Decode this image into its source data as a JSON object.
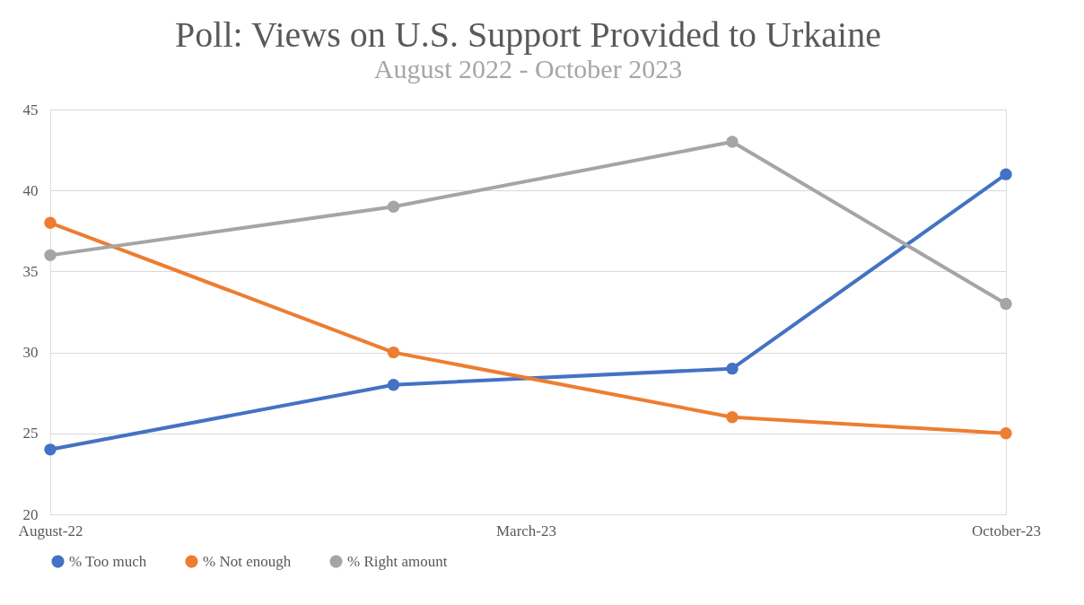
{
  "chart_data": {
    "type": "line",
    "title": "Poll: Views on U.S. Support Provided to Urkaine",
    "subtitle": "August 2022 -  October 2023",
    "x": [
      "2022-08",
      "2023-01",
      "2023-06",
      "2023-10"
    ],
    "series": [
      {
        "name": "% Too much",
        "color": "#4472c4",
        "values": [
          24,
          28,
          29,
          41
        ]
      },
      {
        "name": "% Not enough",
        "color": "#ed7d31",
        "values": [
          38,
          30,
          26,
          25
        ]
      },
      {
        "name": "% Right amount",
        "color": "#a5a5a5",
        "values": [
          36,
          39,
          43,
          33
        ]
      }
    ],
    "xlim": [
      "2022-08",
      "2023-10"
    ],
    "xticks": [
      {
        "value": "2022-08",
        "label": "August-22"
      },
      {
        "value": "2023-03",
        "label": "March-23"
      },
      {
        "value": "2023-10",
        "label": "October-23"
      }
    ],
    "ylim": [
      20,
      45
    ],
    "yticks": [
      20,
      25,
      30,
      35,
      40,
      45
    ],
    "grid": "y",
    "legend": "bottom",
    "marker": "circle",
    "line_style": "solid"
  }
}
